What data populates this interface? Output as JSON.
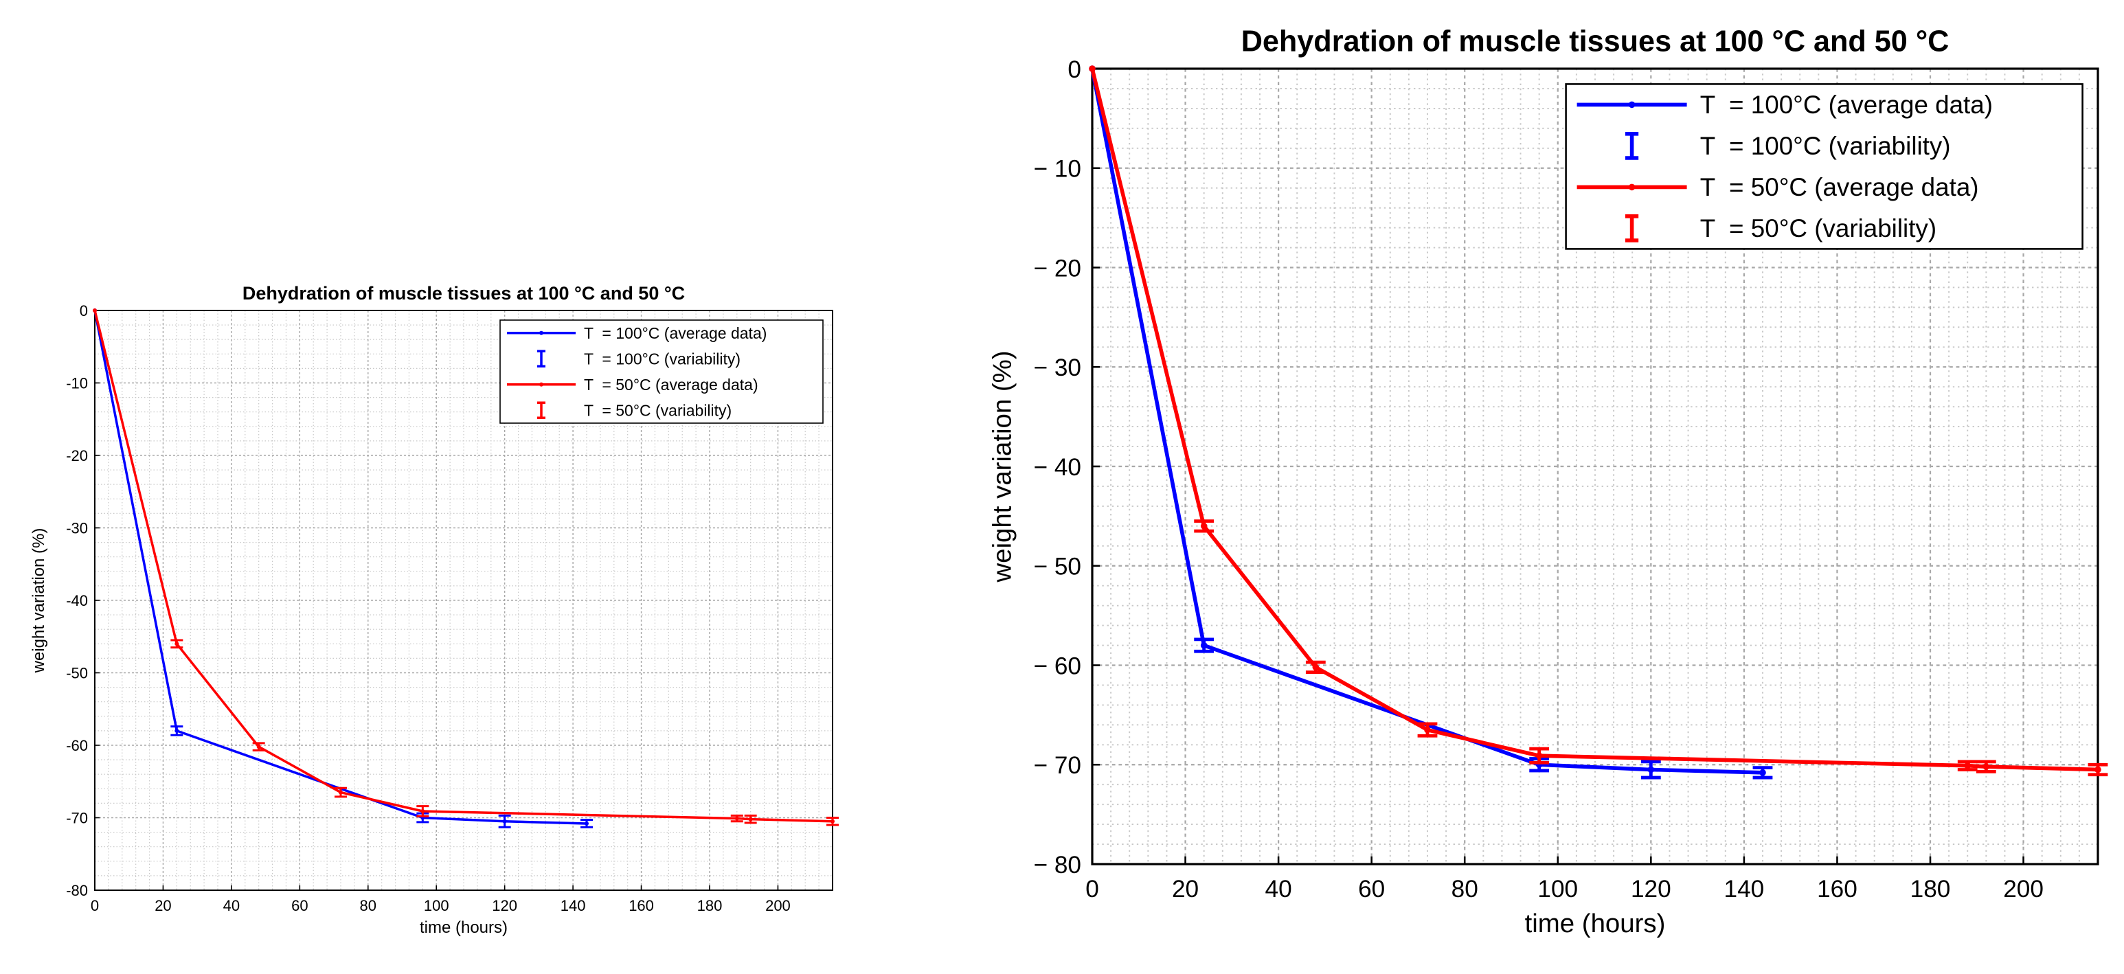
{
  "chart_data": [
    {
      "type": "line",
      "title": "Dehydration of muscle tissues at 100 °C and 50 °C",
      "xlabel": "time (hours)",
      "ylabel": "weight variation (%)",
      "xlim": [
        0,
        216
      ],
      "ylim": [
        -80,
        0
      ],
      "xticks": [
        0,
        20,
        40,
        60,
        80,
        100,
        120,
        140,
        160,
        180,
        200
      ],
      "yticks": [
        0,
        -10,
        -20,
        -30,
        -40,
        -50,
        -60,
        -70,
        -80
      ],
      "xtick_labels": [
        "0",
        "20",
        "40",
        "60",
        "80",
        "100",
        "120",
        "140",
        "160",
        "180",
        "200"
      ],
      "ytick_labels": [
        "0",
        "-10",
        "-20",
        "-30",
        "-40",
        "-50",
        "-60",
        "-70",
        "-80"
      ],
      "grid": true,
      "legend_position": "top-right",
      "legend": [
        "T  = 100°C (average data)",
        "T  = 100°C (variability)",
        "T  = 50°C (average data)",
        "T  = 50°C (variability)"
      ],
      "series": [
        {
          "name": "T = 100°C",
          "color": "#0000ff",
          "x": [
            0,
            24,
            96,
            120,
            144
          ],
          "y": [
            0,
            -58,
            -70,
            -70.5,
            -70.8
          ],
          "err": [
            0,
            0.6,
            0.6,
            0.8,
            0.5
          ]
        },
        {
          "name": "T = 50°C",
          "color": "#ff0000",
          "x": [
            0,
            24,
            48,
            72,
            96,
            188,
            192,
            216
          ],
          "y": [
            0,
            -46,
            -60.2,
            -66.5,
            -69.1,
            -70.1,
            -70.2,
            -70.5
          ],
          "err": [
            0,
            0.5,
            0.5,
            0.6,
            0.7,
            0.4,
            0.5,
            0.5
          ]
        }
      ]
    },
    {
      "type": "line",
      "title": "Dehydration of muscle tissues at 100 °C and 50 °C",
      "xlabel": "time (hours)",
      "ylabel": "weight variation (%)",
      "xlim": [
        0,
        216
      ],
      "ylim": [
        -80,
        0
      ],
      "xticks": [
        0,
        20,
        40,
        60,
        80,
        100,
        120,
        140,
        160,
        180,
        200
      ],
      "yticks": [
        0,
        -10,
        -20,
        -30,
        -40,
        -50,
        -60,
        -70,
        -80
      ],
      "xtick_labels": [
        "0",
        "20",
        "40",
        "60",
        "80",
        "100",
        "120",
        "140",
        "160",
        "180",
        "200"
      ],
      "ytick_labels": [
        "0",
        "− 10",
        "− 20",
        "− 30",
        "− 40",
        "− 50",
        "− 60",
        "− 70",
        "− 80"
      ],
      "grid": true,
      "legend_position": "top-right",
      "legend": [
        "T  = 100°C (average data)",
        "T  = 100°C (variability)",
        "T  = 50°C (average data)",
        "T  = 50°C (variability)"
      ],
      "series": [
        {
          "name": "T = 100°C",
          "color": "#0000ff",
          "x": [
            0,
            24,
            96,
            120,
            144
          ],
          "y": [
            0,
            -58,
            -70,
            -70.5,
            -70.8
          ],
          "err": [
            0,
            0.6,
            0.6,
            0.8,
            0.5
          ]
        },
        {
          "name": "T = 50°C",
          "color": "#ff0000",
          "x": [
            0,
            24,
            48,
            72,
            96,
            188,
            192,
            216
          ],
          "y": [
            0,
            -46,
            -60.2,
            -66.5,
            -69.1,
            -70.1,
            -70.2,
            -70.5
          ],
          "err": [
            0,
            0.5,
            0.5,
            0.6,
            0.7,
            0.4,
            0.5,
            0.5
          ]
        }
      ]
    }
  ]
}
